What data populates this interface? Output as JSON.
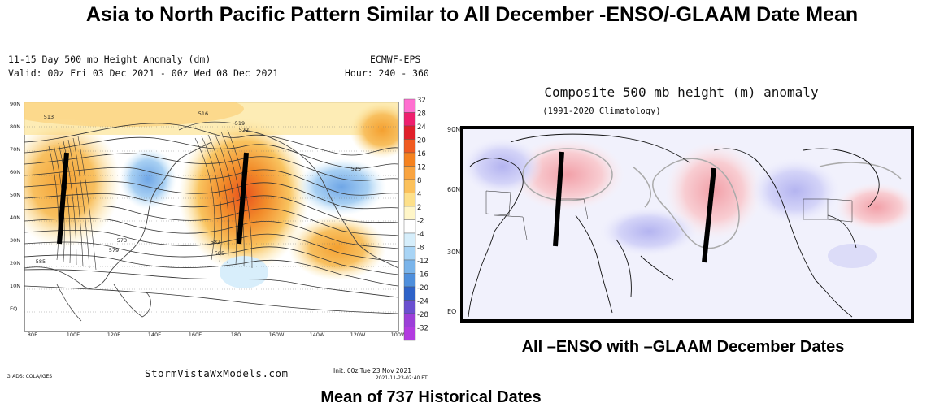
{
  "title": "Asia to North Pacific Pattern Similar to All December -ENSO/-GLAAM Date Mean",
  "left_map": {
    "header_line1": "11-15 Day 500 mb Height Anomaly (dm)",
    "header_line2": "Valid: 00z Fri 03 Dec 2021 - 00z Wed 08 Dec 2021",
    "model": "ECMWF-EPS",
    "hour": "Hour: 240 - 360",
    "lat_labels": [
      "90N",
      "80N",
      "70N",
      "60N",
      "50N",
      "40N",
      "30N",
      "20N",
      "10N",
      "EQ"
    ],
    "lon_labels": [
      "80E",
      "100E",
      "120E",
      "140E",
      "160E",
      "180",
      "160W",
      "140W",
      "120W",
      "100W"
    ],
    "contour_labels": [
      "513",
      "516",
      "519",
      "522",
      "525",
      "585",
      "573",
      "579",
      "582",
      "585"
    ],
    "colorbar_labels": [
      "32",
      "28",
      "24",
      "20",
      "16",
      "12",
      "8",
      "4",
      "2",
      "-2",
      "-4",
      "-8",
      "-12",
      "-16",
      "-20",
      "-24",
      "-28",
      "-32"
    ],
    "colorbar_colors": [
      "#ff6fd0",
      "#ee1f6e",
      "#e0202a",
      "#f05a20",
      "#f5821f",
      "#f9a440",
      "#fbc15c",
      "#fde08a",
      "#fff6c8",
      "#ffffff",
      "#d6eefb",
      "#a8d4f5",
      "#7ab4ea",
      "#4f8fdc",
      "#2e62c8",
      "#6a4fd0",
      "#9c3fd8",
      "#b23be0"
    ],
    "site": "StormVistaWxModels.com",
    "init": "Init: 00z Tue 23 Nov 2021",
    "init_stamp": "2021-11-23-02:40 ET",
    "grads": "GrADS: COLA/IGES"
  },
  "right_map": {
    "title": "Composite 500 mb height (m) anomaly",
    "subtitle": "(1991-2020 Climatology)",
    "lat_labels": [
      "90N",
      "60N",
      "30N",
      "EQ"
    ],
    "caption": "All –ENSO with –GLAAM December Dates"
  },
  "bottom_caption": "Mean of 737 Historical Dates"
}
